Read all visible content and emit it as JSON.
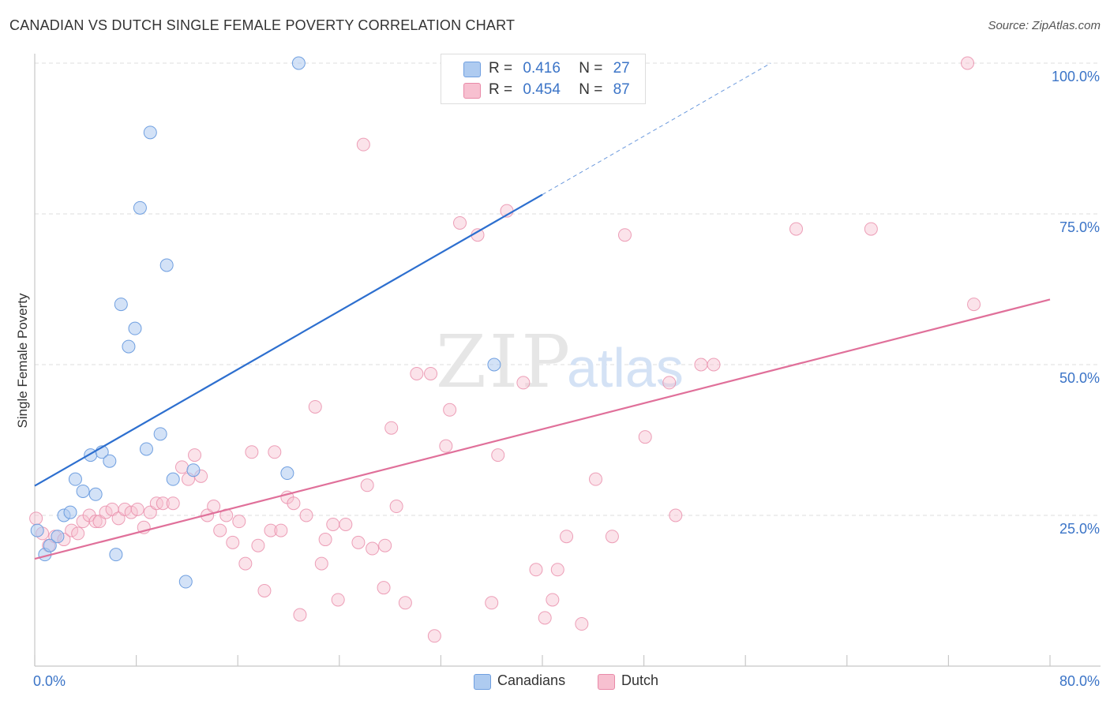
{
  "title": "CANADIAN VS DUTCH SINGLE FEMALE POVERTY CORRELATION CHART",
  "source": "Source: ZipAtlas.com",
  "watermark": {
    "zip": "ZIP",
    "atlas": "atlas"
  },
  "legend": {
    "r_label": "R =",
    "n_label": "N =",
    "canadians": {
      "r": "0.416",
      "n": "27"
    },
    "dutch": {
      "r": "0.454",
      "n": "87"
    }
  },
  "bottom_legend": {
    "canadians": "Canadians",
    "dutch": "Dutch"
  },
  "colors": {
    "canadians_fill": "#aecbf0",
    "canadians_stroke": "#6f9fe0",
    "canadians_line": "#2d6fcf",
    "dutch_fill": "#f7c0d0",
    "dutch_stroke": "#e98aa8",
    "dutch_line": "#e0709a",
    "axis_text": "#3b74c7",
    "grid": "#dcdcdc"
  },
  "chart_data": {
    "type": "scatter",
    "ylabel": "Single Female Poverty",
    "xlabel": "",
    "xlim": [
      0,
      80
    ],
    "ylim": [
      0,
      100
    ],
    "x_tick_labels": [
      "0.0%",
      "80.0%"
    ],
    "y_tick_labels": [
      "100.0%",
      "75.0%",
      "50.0%",
      "25.0%"
    ],
    "y_ticks": [
      100,
      75,
      50,
      25
    ],
    "grid": true,
    "legend_position": "top-center",
    "series": [
      {
        "name": "Canadians",
        "points": [
          [
            0.2,
            22.5
          ],
          [
            0.8,
            18.5
          ],
          [
            1.2,
            20
          ],
          [
            1.8,
            21.5
          ],
          [
            2.3,
            25
          ],
          [
            2.8,
            25.5
          ],
          [
            3.2,
            31
          ],
          [
            3.8,
            29
          ],
          [
            4.4,
            35
          ],
          [
            4.8,
            28.5
          ],
          [
            5.3,
            35.5
          ],
          [
            5.9,
            34
          ],
          [
            6.4,
            18.5
          ],
          [
            6.8,
            60
          ],
          [
            7.4,
            53
          ],
          [
            7.9,
            56
          ],
          [
            8.3,
            76
          ],
          [
            8.8,
            36
          ],
          [
            9.1,
            88.5
          ],
          [
            9.9,
            38.5
          ],
          [
            10.4,
            66.5
          ],
          [
            10.9,
            31
          ],
          [
            11.9,
            14
          ],
          [
            12.5,
            32.5
          ],
          [
            19.9,
            32
          ],
          [
            20.8,
            100
          ],
          [
            36.2,
            50
          ]
        ],
        "trend": {
          "x": [
            0,
            40
          ],
          "y": [
            29.9,
            78.2
          ],
          "dashed_to": {
            "x": 58,
            "y": 100
          }
        }
      },
      {
        "name": "Dutch",
        "points": [
          [
            0.1,
            24.5
          ],
          [
            0.6,
            22
          ],
          [
            1.1,
            20
          ],
          [
            1.6,
            21.5
          ],
          [
            2.3,
            21
          ],
          [
            2.9,
            22.5
          ],
          [
            3.4,
            22
          ],
          [
            3.8,
            24
          ],
          [
            4.3,
            25
          ],
          [
            4.8,
            24
          ],
          [
            5.1,
            24
          ],
          [
            5.6,
            25.5
          ],
          [
            6.1,
            26
          ],
          [
            6.6,
            24.5
          ],
          [
            7.1,
            26
          ],
          [
            7.6,
            25.5
          ],
          [
            8.1,
            26
          ],
          [
            8.6,
            23
          ],
          [
            9.1,
            25.5
          ],
          [
            9.6,
            27
          ],
          [
            10.1,
            27
          ],
          [
            10.9,
            27
          ],
          [
            11.6,
            33
          ],
          [
            12.1,
            31
          ],
          [
            12.6,
            35
          ],
          [
            13.1,
            31.5
          ],
          [
            13.6,
            25
          ],
          [
            14.1,
            26.5
          ],
          [
            14.6,
            22.5
          ],
          [
            15.1,
            25
          ],
          [
            15.6,
            20.5
          ],
          [
            16.1,
            24
          ],
          [
            16.6,
            17
          ],
          [
            17.1,
            35.5
          ],
          [
            17.6,
            20
          ],
          [
            18.1,
            12.5
          ],
          [
            18.6,
            22.5
          ],
          [
            18.9,
            35.5
          ],
          [
            19.4,
            22.5
          ],
          [
            19.9,
            28
          ],
          [
            20.4,
            27
          ],
          [
            20.9,
            8.5
          ],
          [
            21.4,
            25
          ],
          [
            22.1,
            43
          ],
          [
            22.6,
            17
          ],
          [
            22.9,
            21
          ],
          [
            23.5,
            23.5
          ],
          [
            23.9,
            11
          ],
          [
            24.5,
            23.5
          ],
          [
            25.5,
            20.5
          ],
          [
            25.9,
            86.5
          ],
          [
            26.2,
            30
          ],
          [
            26.6,
            19.5
          ],
          [
            27.5,
            13
          ],
          [
            27.6,
            20
          ],
          [
            28.1,
            39.5
          ],
          [
            28.5,
            26.5
          ],
          [
            29.2,
            10.5
          ],
          [
            30.1,
            48.5
          ],
          [
            31.2,
            48.5
          ],
          [
            31.5,
            5
          ],
          [
            32.4,
            36.5
          ],
          [
            32.7,
            42.5
          ],
          [
            33.5,
            73.5
          ],
          [
            34.9,
            71.5
          ],
          [
            36,
            10.5
          ],
          [
            36.5,
            35
          ],
          [
            37.2,
            75.5
          ],
          [
            38.5,
            47
          ],
          [
            39.5,
            16
          ],
          [
            40.2,
            8
          ],
          [
            40.8,
            11
          ],
          [
            41.2,
            16
          ],
          [
            41.9,
            21.5
          ],
          [
            43.1,
            7
          ],
          [
            44.2,
            31
          ],
          [
            45.5,
            21.5
          ],
          [
            46.5,
            71.5
          ],
          [
            48.1,
            38
          ],
          [
            50,
            47
          ],
          [
            50.5,
            25
          ],
          [
            52.5,
            50
          ],
          [
            53.5,
            50
          ],
          [
            60,
            72.5
          ],
          [
            65.9,
            72.5
          ],
          [
            73.5,
            100
          ],
          [
            74,
            60
          ]
        ],
        "trend": {
          "x": [
            0,
            80
          ],
          "y": [
            17.8,
            60.8
          ]
        }
      }
    ]
  }
}
